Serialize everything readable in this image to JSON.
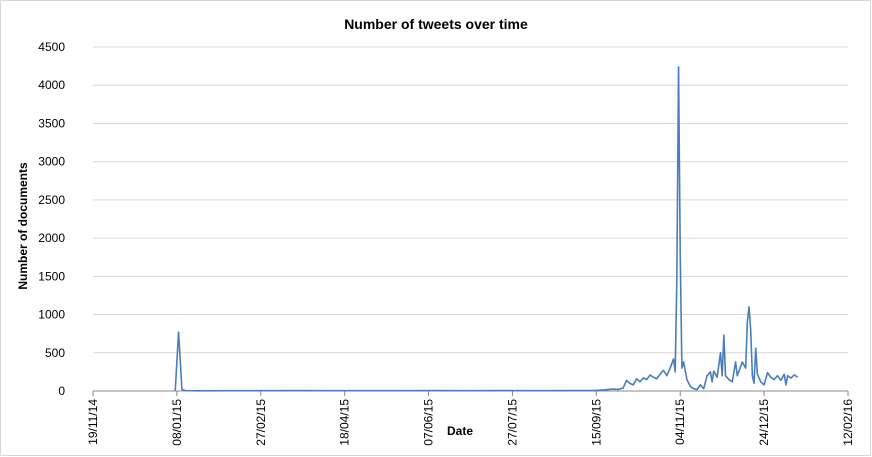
{
  "chart_data": {
    "type": "line",
    "title": "Number of tweets over time",
    "xlabel": "Date",
    "ylabel": "Number of documents",
    "ylim": [
      0,
      4500
    ],
    "y_ticks": [
      0,
      500,
      1000,
      1500,
      2000,
      2500,
      3000,
      3500,
      4000,
      4500
    ],
    "x_range": [
      "2014-11-19",
      "2016-02-12"
    ],
    "x_ticks": [
      {
        "date": "2014-11-19",
        "label": "19/11/14"
      },
      {
        "date": "2015-01-08",
        "label": "08/01/15"
      },
      {
        "date": "2015-02-27",
        "label": "27/02/15"
      },
      {
        "date": "2015-04-18",
        "label": "18/04/15"
      },
      {
        "date": "2015-06-07",
        "label": "07/06/15"
      },
      {
        "date": "2015-07-27",
        "label": "27/07/15"
      },
      {
        "date": "2015-09-15",
        "label": "15/09/15"
      },
      {
        "date": "2015-11-04",
        "label": "04/11/15"
      },
      {
        "date": "2015-12-24",
        "label": "24/12/15"
      },
      {
        "date": "2016-02-12",
        "label": "12/02/16"
      }
    ],
    "grid": "horizontal",
    "legend": "none",
    "series": [
      {
        "color": "#4a7ebb",
        "points": [
          [
            "2015-01-07",
            0
          ],
          [
            "2015-01-09",
            770
          ],
          [
            "2015-01-11",
            20
          ],
          [
            "2015-01-13",
            5
          ],
          [
            "2015-01-20",
            3
          ],
          [
            "2015-02-10",
            4
          ],
          [
            "2015-03-01",
            5
          ],
          [
            "2015-03-20",
            6
          ],
          [
            "2015-04-10",
            5
          ],
          [
            "2015-05-01",
            5
          ],
          [
            "2015-05-20",
            5
          ],
          [
            "2015-06-10",
            6
          ],
          [
            "2015-07-01",
            5
          ],
          [
            "2015-07-20",
            6
          ],
          [
            "2015-08-10",
            5
          ],
          [
            "2015-08-30",
            6
          ],
          [
            "2015-09-15",
            8
          ],
          [
            "2015-09-20",
            15
          ],
          [
            "2015-09-25",
            25
          ],
          [
            "2015-09-28",
            20
          ],
          [
            "2015-10-01",
            40
          ],
          [
            "2015-10-03",
            140
          ],
          [
            "2015-10-05",
            100
          ],
          [
            "2015-10-07",
            80
          ],
          [
            "2015-10-09",
            160
          ],
          [
            "2015-10-11",
            120
          ],
          [
            "2015-10-13",
            170
          ],
          [
            "2015-10-15",
            150
          ],
          [
            "2015-10-17",
            210
          ],
          [
            "2015-10-19",
            180
          ],
          [
            "2015-10-21",
            160
          ],
          [
            "2015-10-23",
            220
          ],
          [
            "2015-10-25",
            270
          ],
          [
            "2015-10-27",
            200
          ],
          [
            "2015-10-29",
            300
          ],
          [
            "2015-10-31",
            420
          ],
          [
            "2015-11-01",
            250
          ],
          [
            "2015-11-02",
            1500
          ],
          [
            "2015-11-03",
            4240
          ],
          [
            "2015-11-04",
            1800
          ],
          [
            "2015-11-05",
            300
          ],
          [
            "2015-11-06",
            380
          ],
          [
            "2015-11-08",
            150
          ],
          [
            "2015-11-10",
            60
          ],
          [
            "2015-11-12",
            30
          ],
          [
            "2015-11-14",
            20
          ],
          [
            "2015-11-16",
            80
          ],
          [
            "2015-11-18",
            30
          ],
          [
            "2015-11-20",
            200
          ],
          [
            "2015-11-22",
            250
          ],
          [
            "2015-11-23",
            120
          ],
          [
            "2015-11-24",
            260
          ],
          [
            "2015-11-26",
            180
          ],
          [
            "2015-11-28",
            500
          ],
          [
            "2015-11-29",
            200
          ],
          [
            "2015-11-30",
            730
          ],
          [
            "2015-12-01",
            200
          ],
          [
            "2015-12-03",
            150
          ],
          [
            "2015-12-05",
            120
          ],
          [
            "2015-12-07",
            380
          ],
          [
            "2015-12-08",
            200
          ],
          [
            "2015-12-09",
            260
          ],
          [
            "2015-12-11",
            380
          ],
          [
            "2015-12-13",
            300
          ],
          [
            "2015-12-14",
            900
          ],
          [
            "2015-12-15",
            1100
          ],
          [
            "2015-12-16",
            800
          ],
          [
            "2015-12-17",
            200
          ],
          [
            "2015-12-18",
            100
          ],
          [
            "2015-12-19",
            560
          ],
          [
            "2015-12-20",
            220
          ],
          [
            "2015-12-22",
            120
          ],
          [
            "2015-12-24",
            80
          ],
          [
            "2015-12-26",
            240
          ],
          [
            "2015-12-28",
            180
          ],
          [
            "2015-12-30",
            150
          ],
          [
            "2016-01-01",
            200
          ],
          [
            "2016-01-03",
            140
          ],
          [
            "2016-01-05",
            220
          ],
          [
            "2016-01-06",
            80
          ],
          [
            "2016-01-07",
            200
          ],
          [
            "2016-01-09",
            170
          ],
          [
            "2016-01-11",
            210
          ],
          [
            "2016-01-13",
            180
          ]
        ]
      }
    ]
  }
}
